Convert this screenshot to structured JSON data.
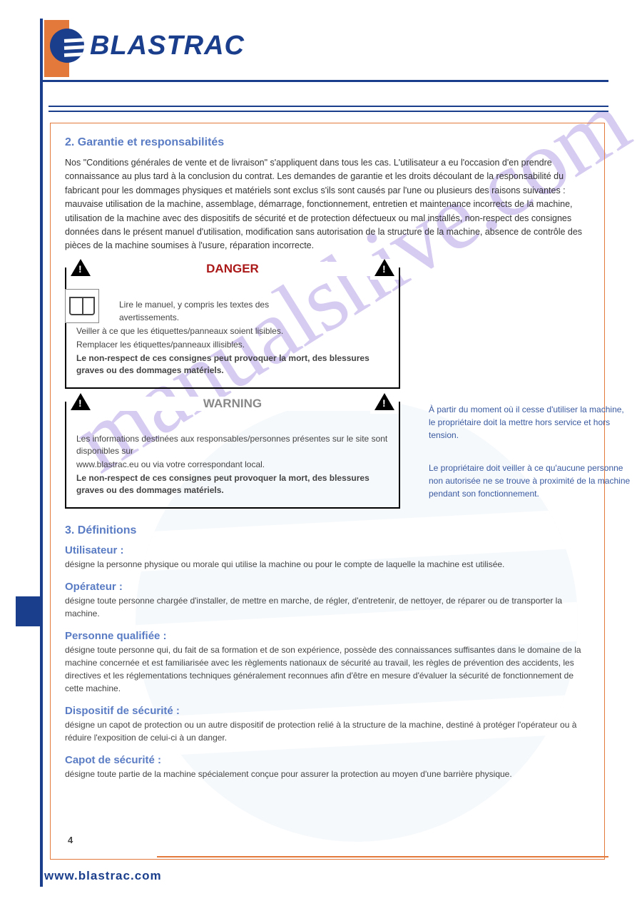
{
  "logo_text": "BLASTRAC",
  "watermark": "manualshive.com",
  "section2": {
    "heading": "2. Garantie et responsabilités",
    "p1": "Nos \"Conditions générales de vente et de livraison\" s'appliquent dans tous les cas. L'utilisateur a eu l'occasion d'en prendre connaissance au plus tard à la conclusion du contrat. Les demandes de garantie et les droits découlant de la responsabilité du fabricant pour les dommages physiques et matériels sont exclus s'ils sont causés par l'une ou plusieurs des raisons suivantes : mauvaise utilisation de la machine, assemblage, démarrage, fonctionnement, entretien et maintenance incorrects de la machine, utilisation de la machine avec des dispositifs de sécurité et de protection défectueux ou mal installés, non-respect des consignes données dans le présent manuel d'utilisation, modification sans autorisation de la structure de la machine, absence de contrôle des pièces de la machine soumises à l'usure, réparation incorrecte."
  },
  "boxes": {
    "danger": {
      "label": "DANGER",
      "l1": "Lire le manuel, y compris les textes des",
      "l2": "avertissements.",
      "l3": "Veiller à ce que les étiquettes/panneaux soient lisibles.",
      "l4": "Remplacer les étiquettes/panneaux illisibles.",
      "l5": "Le non-respect de ces consignes peut provoquer la mort, des blessures graves ou des dommages matériels."
    },
    "warning": {
      "label": "WARNING",
      "l1": "Les informations destinées aux responsables/personnes présentes sur le site sont disponibles sur",
      "l2": "www.blastrac.eu ou via votre correspondant local.",
      "l3": "Le non-respect de ces consignes peut provoquer la mort, des blessures graves ou des dommages matériels."
    },
    "note1": "À partir du moment où il cesse d'utiliser la machine, le propriétaire doit la mettre hors service et hors tension.",
    "note2": "Le propriétaire doit veiller à ce qu'aucune personne non autorisée ne se trouve à proximité de la machine pendant son fonctionnement."
  },
  "section3": {
    "heading": "3. Définitions",
    "defs": [
      {
        "term": "Utilisateur :",
        "text": "désigne la personne physique ou morale qui utilise la machine ou pour le compte de laquelle la machine est utilisée."
      },
      {
        "term": "Opérateur :",
        "text": "désigne toute personne chargée d'installer, de mettre en marche, de régler, d'entretenir, de nettoyer, de réparer ou de transporter la machine."
      },
      {
        "term": "Personne qualifiée :",
        "text": "désigne toute personne qui, du fait de sa formation et de son expérience, possède des connaissances suffisantes dans le domaine de la machine concernée et est familiarisée avec les règlements nationaux de sécurité au travail, les règles de prévention des accidents, les directives et les réglementations techniques généralement reconnues afin d'être en mesure d'évaluer la sécurité de fonctionnement de cette machine."
      },
      {
        "term": "Dispositif de sécurité :",
        "text": "désigne un capot de protection ou un autre dispositif de protection relié à la structure de la machine, destiné à protéger l'opérateur ou à réduire l'exposition de celui-ci à un danger."
      },
      {
        "term": "Capot de sécurité :",
        "text": "désigne toute partie de la machine spécialement conçue pour assurer la protection au moyen d'une barrière physique."
      }
    ]
  },
  "footer_url": "www.blastrac.com",
  "page_num": "4"
}
